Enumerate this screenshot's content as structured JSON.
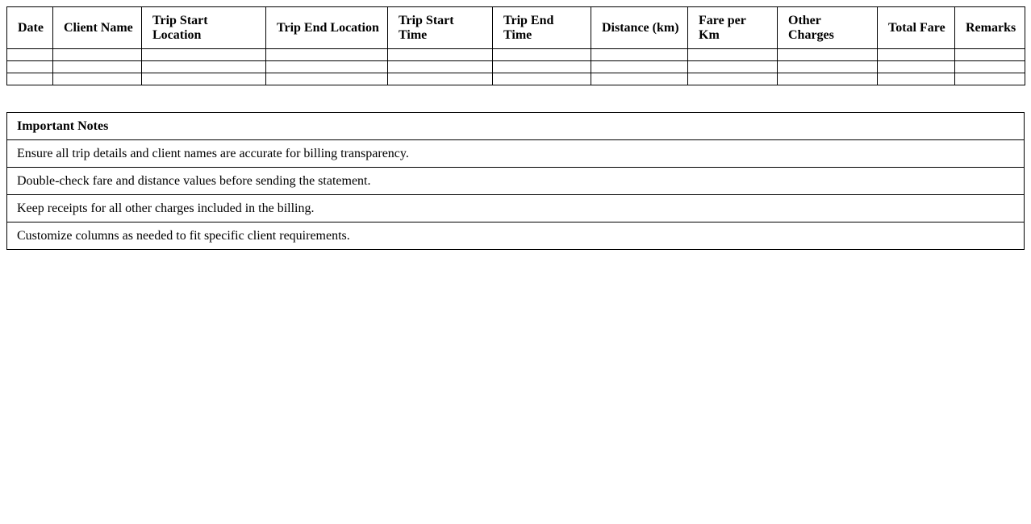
{
  "trip_table": {
    "headers": [
      "Date",
      "Client Name",
      "Trip Start Location",
      "Trip End Location",
      "Trip Start Time",
      "Trip End Time",
      "Distance (km)",
      "Fare per Km",
      "Other Charges",
      "Total Fare",
      "Remarks"
    ],
    "empty_rows": 3
  },
  "notes_table": {
    "title": "Important Notes",
    "notes": [
      "Ensure all trip details and client names are accurate for billing transparency.",
      "Double-check fare and distance values before sending the statement.",
      "Keep receipts for all other charges included in the billing.",
      "Customize columns as needed to fit specific client requirements."
    ]
  },
  "colors": {
    "border": "#000000",
    "text": "#000000",
    "background": "#ffffff"
  }
}
